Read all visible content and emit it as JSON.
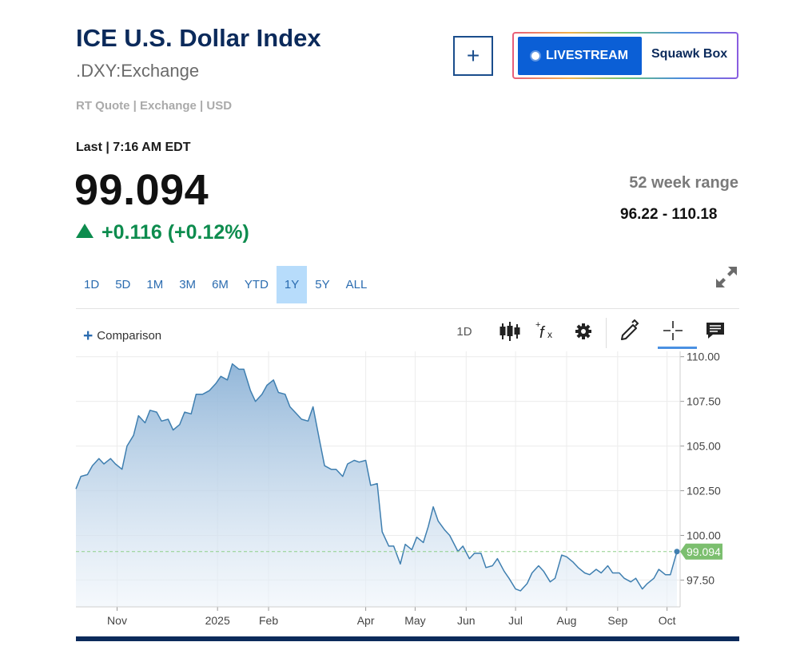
{
  "header": {
    "title": "ICE U.S. Dollar Index",
    "symbol": ".DXY:Exchange",
    "meta": "RT Quote | Exchange | USD",
    "last_time": "Last | 7:16 AM EDT",
    "price": "99.094",
    "change": "+0.116 (+0.12%)",
    "range_label": "52 week range",
    "range_value": "96.22 - 110.18"
  },
  "buttons": {
    "add": "+",
    "livestream": "LIVESTREAM",
    "squawk": "Squawk Box"
  },
  "tabs": [
    {
      "label": "1D",
      "active": false
    },
    {
      "label": "5D",
      "active": false
    },
    {
      "label": "1M",
      "active": false
    },
    {
      "label": "3M",
      "active": false
    },
    {
      "label": "6M",
      "active": false
    },
    {
      "label": "YTD",
      "active": false
    },
    {
      "label": "1Y",
      "active": true
    },
    {
      "label": "5Y",
      "active": false
    },
    {
      "label": "ALL",
      "active": false
    }
  ],
  "toolbar": {
    "comparison": "Comparison",
    "interval": "1D",
    "icons": [
      "candlestick-icon",
      "function-icon",
      "gear-icon",
      "pencil-icon",
      "crosshair-icon",
      "comment-icon"
    ]
  },
  "colors": {
    "line": "#3f7fb0",
    "positive": "#0d8c4e",
    "price_tag": "#7cbf6f",
    "navy": "#0b2a5b"
  },
  "chart_data": {
    "type": "area",
    "title": "",
    "xlabel": "",
    "ylabel": "",
    "ylim": [
      96.0,
      110.3
    ],
    "y_ticks": [
      "110.00",
      "107.50",
      "105.00",
      "102.50",
      "100.00",
      "97.50"
    ],
    "x_ticks": [
      "Nov",
      "2025",
      "Feb",
      "Apr",
      "May",
      "Jun",
      "Jul",
      "Aug",
      "Sep",
      "Oct"
    ],
    "current_label": "99.094",
    "current_value": 99.094,
    "grid": true,
    "x": [
      "2024-10-07",
      "2024-10-10",
      "2024-10-14",
      "2024-10-17",
      "2024-10-21",
      "2024-10-24",
      "2024-10-28",
      "2024-10-31",
      "2024-11-04",
      "2024-11-07",
      "2024-11-11",
      "2024-11-14",
      "2024-11-18",
      "2024-11-21",
      "2024-11-25",
      "2024-11-28",
      "2024-12-02",
      "2024-12-05",
      "2024-12-09",
      "2024-12-12",
      "2024-12-16",
      "2024-12-19",
      "2024-12-23",
      "2024-12-27",
      "2024-12-31",
      "2025-01-03",
      "2025-01-07",
      "2025-01-10",
      "2025-01-14",
      "2025-01-17",
      "2025-01-21",
      "2025-01-24",
      "2025-01-28",
      "2025-01-31",
      "2025-02-04",
      "2025-02-07",
      "2025-02-11",
      "2025-02-14",
      "2025-02-18",
      "2025-02-21",
      "2025-02-25",
      "2025-02-28",
      "2025-03-04",
      "2025-03-07",
      "2025-03-11",
      "2025-03-14",
      "2025-03-18",
      "2025-03-21",
      "2025-03-25",
      "2025-03-28",
      "2025-04-01",
      "2025-04-04",
      "2025-04-08",
      "2025-04-11",
      "2025-04-15",
      "2025-04-18",
      "2025-04-22",
      "2025-04-25",
      "2025-04-29",
      "2025-05-02",
      "2025-05-06",
      "2025-05-09",
      "2025-05-12",
      "2025-05-15",
      "2025-05-19",
      "2025-05-22",
      "2025-05-27",
      "2025-05-30",
      "2025-06-03",
      "2025-06-06",
      "2025-06-10",
      "2025-06-13",
      "2025-06-17",
      "2025-06-20",
      "2025-06-24",
      "2025-06-27",
      "2025-07-01",
      "2025-07-04",
      "2025-07-08",
      "2025-07-11",
      "2025-07-15",
      "2025-07-18",
      "2025-07-22",
      "2025-07-25",
      "2025-07-29",
      "2025-08-01",
      "2025-08-05",
      "2025-08-08",
      "2025-08-12",
      "2025-08-15",
      "2025-08-19",
      "2025-08-22",
      "2025-08-26",
      "2025-08-29",
      "2025-09-02",
      "2025-09-05",
      "2025-09-09",
      "2025-09-12",
      "2025-09-16",
      "2025-09-19",
      "2025-09-23",
      "2025-09-26",
      "2025-09-30",
      "2025-10-03",
      "2025-10-07"
    ],
    "values": [
      102.6,
      103.3,
      103.4,
      103.9,
      104.3,
      104.0,
      104.3,
      104.0,
      103.7,
      105.0,
      105.6,
      106.7,
      106.3,
      107.0,
      106.9,
      106.4,
      106.5,
      105.9,
      106.2,
      106.9,
      106.8,
      107.9,
      107.9,
      108.1,
      108.5,
      108.9,
      108.7,
      109.6,
      109.3,
      109.3,
      108.1,
      107.5,
      107.9,
      108.4,
      108.7,
      108.0,
      107.9,
      107.2,
      106.8,
      106.5,
      106.4,
      107.2,
      105.3,
      103.9,
      103.7,
      103.7,
      103.3,
      104.0,
      104.2,
      104.1,
      104.2,
      102.8,
      102.9,
      100.2,
      99.4,
      99.4,
      98.4,
      99.5,
      99.2,
      99.9,
      99.6,
      100.5,
      101.6,
      100.8,
      100.3,
      100.0,
      99.1,
      99.4,
      98.7,
      99.0,
      99.0,
      98.2,
      98.3,
      98.7,
      98.0,
      97.6,
      97.0,
      96.9,
      97.3,
      97.9,
      98.3,
      98.0,
      97.4,
      97.6,
      98.9,
      98.8,
      98.5,
      98.2,
      97.9,
      97.8,
      98.1,
      97.9,
      98.3,
      97.9,
      97.9,
      97.6,
      97.4,
      97.6,
      97.0,
      97.3,
      97.6,
      98.1,
      97.8,
      97.8,
      99.094
    ]
  }
}
